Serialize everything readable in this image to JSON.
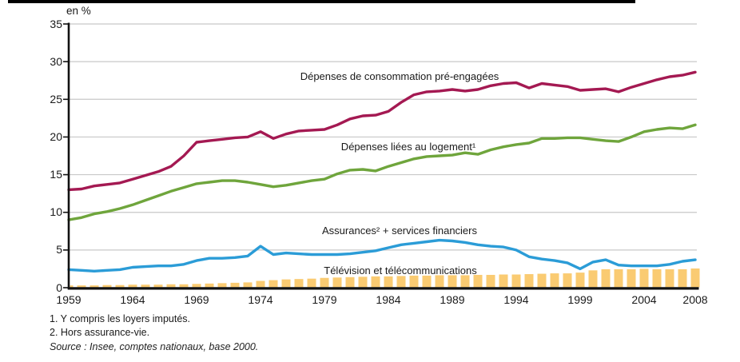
{
  "footnotes": [
    "1. Y compris les loyers imputés.",
    "2. Hors assurance-vie."
  ],
  "source_line": "Source : Insee, comptes nationaux, base 2000.",
  "colors": {
    "grid": "#c8c8c8",
    "axis": "#111111",
    "pre_engagees": "#a41952",
    "logement": "#6fa53c",
    "assurances": "#2b9cd7",
    "tv_telecom": "#facb72"
  },
  "chart_data": {
    "type": "combo",
    "x_start": 1959,
    "x_end": 2008,
    "x_tick_years": [
      1959,
      1964,
      1969,
      1974,
      1979,
      1984,
      1989,
      1994,
      1999,
      2004,
      2008
    ],
    "y_axis": {
      "label": "en %",
      "min": 0,
      "max": 35,
      "ticks": [
        35,
        30,
        25,
        20,
        15,
        10,
        5,
        0
      ],
      "grid": true
    },
    "legend_position": "inline-labels",
    "series": [
      {
        "id": "pre_engagees",
        "label": "Dépenses de consommation pré-engagées",
        "type": "line",
        "color": "#a41952",
        "values": [
          13.0,
          13.1,
          13.5,
          13.7,
          13.9,
          14.4,
          14.9,
          15.4,
          16.1,
          17.5,
          19.3,
          19.5,
          19.7,
          19.9,
          20.0,
          20.7,
          19.8,
          20.4,
          20.8,
          20.9,
          21.0,
          21.6,
          22.4,
          22.8,
          22.9,
          23.4,
          24.6,
          25.6,
          26.0,
          26.1,
          26.3,
          26.1,
          26.3,
          26.8,
          27.1,
          27.2,
          26.5,
          27.1,
          26.9,
          26.7,
          26.2,
          26.3,
          26.4,
          26.0,
          26.6,
          27.1,
          27.6,
          28.0,
          28.2,
          28.6
        ]
      },
      {
        "id": "logement",
        "label": "Dépenses liées au logement¹",
        "type": "line",
        "color": "#6fa53c",
        "values": [
          9.0,
          9.3,
          9.8,
          10.1,
          10.5,
          11.0,
          11.6,
          12.2,
          12.8,
          13.3,
          13.8,
          14.0,
          14.2,
          14.2,
          14.0,
          13.7,
          13.4,
          13.6,
          13.9,
          14.2,
          14.4,
          15.1,
          15.6,
          15.7,
          15.5,
          16.1,
          16.6,
          17.1,
          17.4,
          17.5,
          17.6,
          17.9,
          17.7,
          18.3,
          18.7,
          19.0,
          19.2,
          19.8,
          19.8,
          19.9,
          19.9,
          19.7,
          19.5,
          19.4,
          20.0,
          20.7,
          21.0,
          21.2,
          21.1,
          21.6
        ]
      },
      {
        "id": "assurances",
        "label": "Assurances² + services financiers",
        "type": "line",
        "color": "#2b9cd7",
        "values": [
          2.4,
          2.3,
          2.2,
          2.3,
          2.4,
          2.7,
          2.8,
          2.9,
          2.9,
          3.1,
          3.6,
          3.9,
          3.9,
          4.0,
          4.2,
          5.5,
          4.4,
          4.6,
          4.5,
          4.4,
          4.4,
          4.4,
          4.5,
          4.7,
          4.9,
          5.3,
          5.7,
          5.9,
          6.1,
          6.3,
          6.2,
          6.0,
          5.7,
          5.5,
          5.4,
          5.0,
          4.1,
          3.8,
          3.6,
          3.3,
          2.5,
          3.4,
          3.7,
          3.0,
          2.9,
          2.9,
          2.9,
          3.1,
          3.5,
          3.7
        ]
      },
      {
        "id": "tv_telecom",
        "label": "Télévision et télécommunications",
        "type": "bar",
        "color": "#facb72",
        "values": [
          0.3,
          0.3,
          0.3,
          0.35,
          0.35,
          0.4,
          0.4,
          0.4,
          0.45,
          0.45,
          0.5,
          0.55,
          0.6,
          0.65,
          0.7,
          0.9,
          1.0,
          1.1,
          1.15,
          1.2,
          1.3,
          1.35,
          1.4,
          1.45,
          1.5,
          1.5,
          1.55,
          1.6,
          1.6,
          1.65,
          1.65,
          1.65,
          1.7,
          1.7,
          1.75,
          1.75,
          1.8,
          1.85,
          1.9,
          1.9,
          2.0,
          2.3,
          2.45,
          2.45,
          2.45,
          2.5,
          2.45,
          2.45,
          2.45,
          2.55
        ]
      }
    ]
  }
}
